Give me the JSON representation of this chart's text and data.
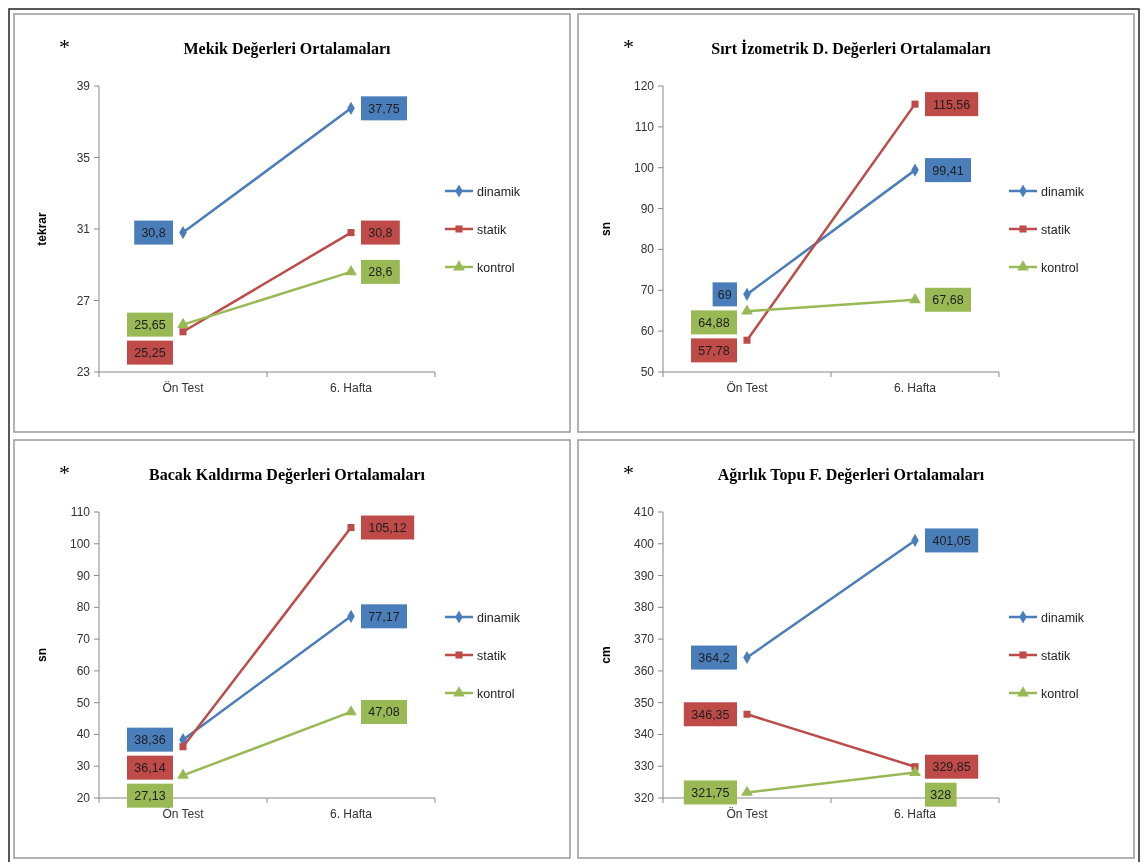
{
  "chart_data": [
    {
      "type": "line",
      "title": "Mekik Değerleri Ortalamaları",
      "ylabel": "tekrar",
      "annotations": [
        "*"
      ],
      "categories": [
        "Ön Test",
        "6. Hafta"
      ],
      "ylim": [
        23,
        39
      ],
      "yticks": [
        23,
        27,
        31,
        35,
        39
      ],
      "legend": "right",
      "grid": false,
      "line_style": "solid",
      "series": [
        {
          "name": "dinamik",
          "color": "#4a7ebb",
          "marker": "diamond",
          "values": [
            30.8,
            37.75
          ],
          "value_labels": [
            "30,8",
            "37,75"
          ]
        },
        {
          "name": "statik",
          "color": "#be4b48",
          "marker": "square",
          "values": [
            25.25,
            30.8
          ],
          "value_labels": [
            "25,25",
            "30,8"
          ]
        },
        {
          "name": "kontrol",
          "color": "#98b954",
          "marker": "triangle",
          "values": [
            25.65,
            28.6
          ],
          "value_labels": [
            "25,65",
            "28,6"
          ]
        }
      ]
    },
    {
      "type": "line",
      "title": "Sırt İzometrik D. Değerleri Ortalamaları",
      "ylabel": "sn",
      "annotations": [
        "*"
      ],
      "categories": [
        "Ön Test",
        "6. Hafta"
      ],
      "ylim": [
        50,
        120
      ],
      "yticks": [
        50,
        60,
        70,
        80,
        90,
        100,
        110,
        120
      ],
      "legend": "right",
      "grid": false,
      "line_style": "solid",
      "series": [
        {
          "name": "dinamik",
          "color": "#4a7ebb",
          "marker": "diamond",
          "values": [
            69,
            99.41
          ],
          "value_labels": [
            "69",
            "99,41"
          ]
        },
        {
          "name": "statik",
          "color": "#be4b48",
          "marker": "square",
          "values": [
            57.78,
            115.56
          ],
          "value_labels": [
            "57,78",
            "115,56"
          ]
        },
        {
          "name": "kontrol",
          "color": "#98b954",
          "marker": "triangle",
          "values": [
            64.88,
            67.68
          ],
          "value_labels": [
            "64,88",
            "67,68"
          ]
        }
      ]
    },
    {
      "type": "line",
      "title": "Bacak Kaldırma Değerleri Ortalamaları",
      "ylabel": "sn",
      "annotations": [
        "*"
      ],
      "categories": [
        "Ön Test",
        "6. Hafta"
      ],
      "ylim": [
        20,
        110
      ],
      "yticks": [
        20,
        30,
        40,
        50,
        60,
        70,
        80,
        90,
        100,
        110
      ],
      "legend": "right",
      "grid": false,
      "line_style": "solid",
      "series": [
        {
          "name": "dinamik",
          "color": "#4a7ebb",
          "marker": "diamond",
          "values": [
            38.36,
            77.17
          ],
          "value_labels": [
            "38,36",
            "77,17"
          ]
        },
        {
          "name": "statik",
          "color": "#be4b48",
          "marker": "square",
          "values": [
            36.14,
            105.12
          ],
          "value_labels": [
            "36,14",
            "105,12"
          ]
        },
        {
          "name": "kontrol",
          "color": "#98b954",
          "marker": "triangle",
          "values": [
            27.13,
            47.08
          ],
          "value_labels": [
            "27,13",
            "47,08"
          ]
        }
      ]
    },
    {
      "type": "line",
      "title": "Ağırlık Topu F. Değerleri Ortalamaları",
      "ylabel": "cm",
      "annotations": [
        "*"
      ],
      "categories": [
        "Ön Test",
        "6. Hafta"
      ],
      "ylim": [
        320,
        410
      ],
      "yticks": [
        320,
        330,
        340,
        350,
        360,
        370,
        380,
        390,
        400,
        410
      ],
      "legend": "right",
      "grid": false,
      "line_style": "solid",
      "series": [
        {
          "name": "dinamik",
          "color": "#4a7ebb",
          "marker": "diamond",
          "values": [
            364.2,
            401.05
          ],
          "value_labels": [
            "364,2",
            "401,05"
          ]
        },
        {
          "name": "statik",
          "color": "#be4b48",
          "marker": "square",
          "values": [
            346.35,
            329.85
          ],
          "value_labels": [
            "346,35",
            "329,85"
          ]
        },
        {
          "name": "kontrol",
          "color": "#98b954",
          "marker": "triangle",
          "values": [
            321.75,
            328
          ],
          "value_labels": [
            "321,75",
            "328"
          ]
        }
      ]
    }
  ]
}
